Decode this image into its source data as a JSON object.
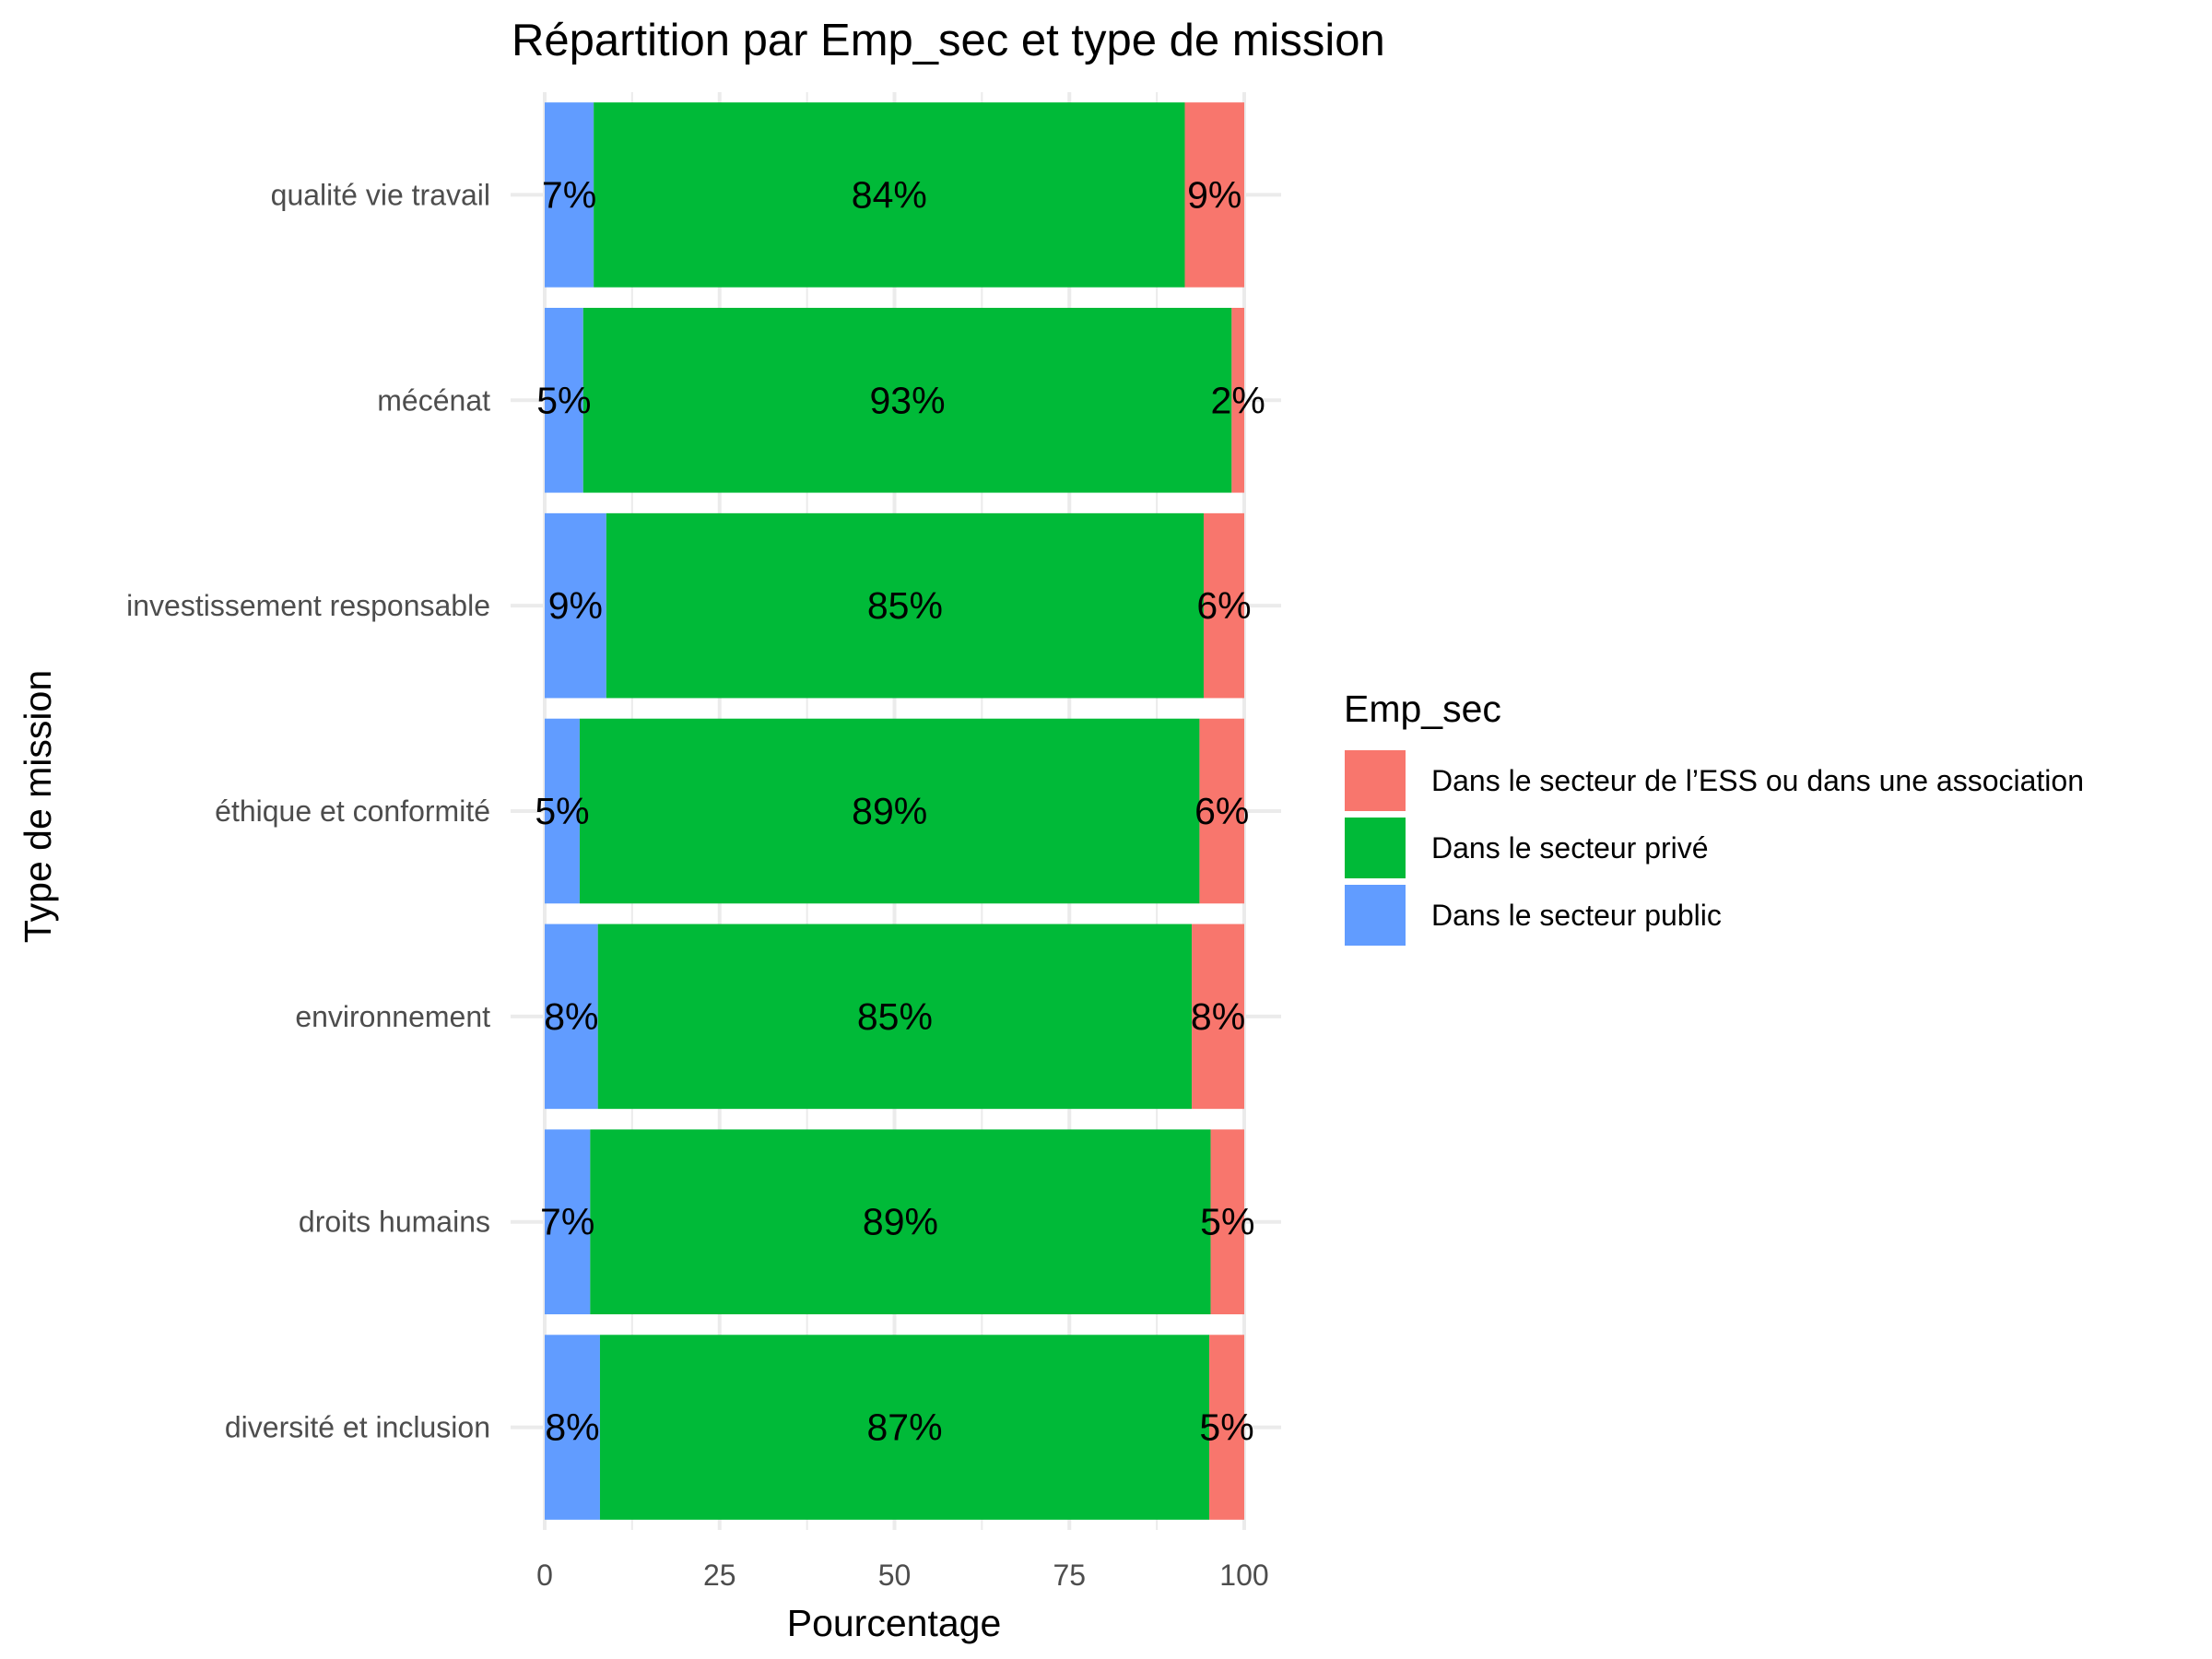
{
  "chart_data": {
    "type": "bar",
    "orientation": "horizontal",
    "stacked": true,
    "title": "Répartition par Emp_sec et type de mission",
    "xlabel": "Pourcentage",
    "ylabel": "Type de mission",
    "xlim": [
      0,
      100
    ],
    "x_ticks": [
      "0",
      "25",
      "50",
      "75",
      "100"
    ],
    "grid": true,
    "legend_position": "right",
    "legend_title": "Emp_sec",
    "categories": [
      "qualité vie travail",
      "mécénat",
      "investissement responsable",
      "éthique et conformité",
      "environnement",
      "droits humains",
      "diversité et inclusion"
    ],
    "series": [
      {
        "name": "Dans le secteur public",
        "color": "#619CFF",
        "values": [
          7,
          5.5,
          8.8,
          5,
          7.6,
          6.5,
          7.9
        ],
        "labels": [
          "7%",
          "5%",
          "9%",
          "5%",
          "8%",
          "7%",
          "8%"
        ]
      },
      {
        "name": "Dans le secteur privé",
        "color": "#00BA38",
        "values": [
          84.5,
          92.7,
          85.4,
          88.6,
          84.9,
          88.7,
          87.1
        ],
        "labels": [
          "84%",
          "93%",
          "85%",
          "89%",
          "85%",
          "89%",
          "87%"
        ]
      },
      {
        "name": "Dans le secteur de l’ESS ou dans une association",
        "color": "#F8766D",
        "values": [
          8.5,
          1.8,
          5.8,
          6.4,
          7.5,
          4.8,
          5
        ],
        "labels": [
          "9%",
          "2%",
          "6%",
          "6%",
          "8%",
          "5%",
          "5%"
        ]
      }
    ],
    "legend_order": [
      "Dans le secteur de l’ESS ou dans une association",
      "Dans le secteur privé",
      "Dans le secteur public"
    ]
  }
}
